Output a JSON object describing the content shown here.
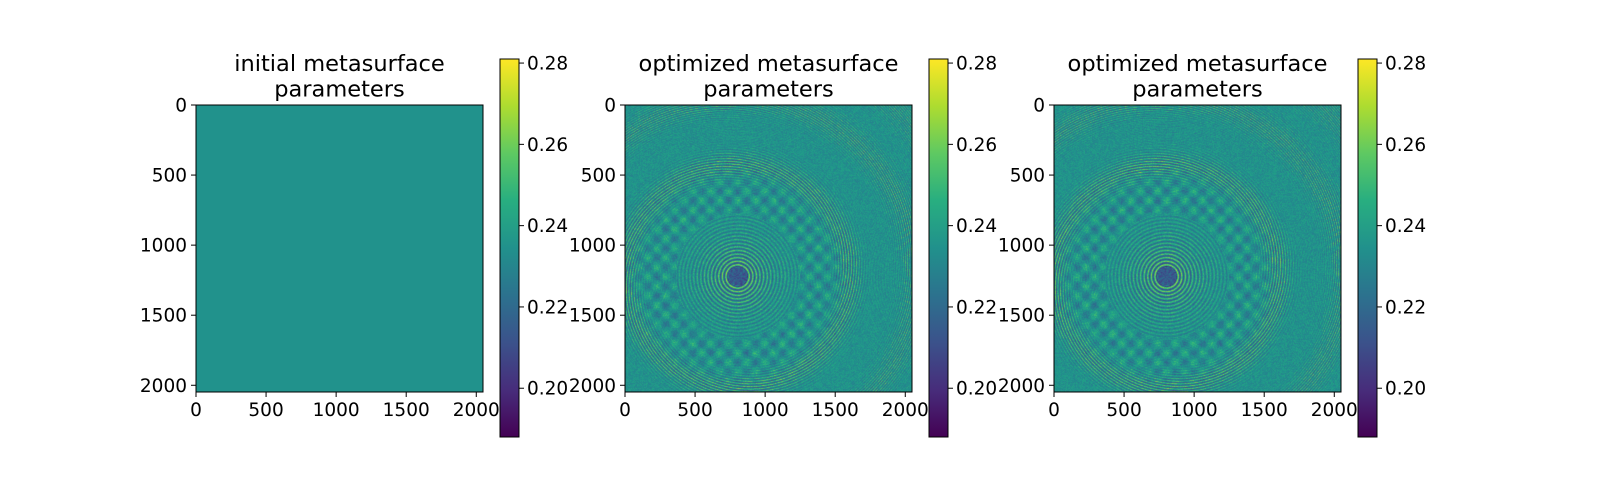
{
  "colors": {
    "viridis_low": "#440154",
    "viridis_mid": "#21918c",
    "viridis_high": "#fde725",
    "uniform_field": "#238f8c",
    "background": "#ffffff"
  },
  "chart_data": [
    {
      "type": "heatmap",
      "title_lines": [
        "initial metasurface",
        "parameters"
      ],
      "xlim": [
        0,
        2048
      ],
      "ylim": [
        2048,
        0
      ],
      "xticks": [
        0,
        500,
        1000,
        1500,
        2000
      ],
      "yticks": [
        0,
        500,
        1000,
        1500,
        2000
      ],
      "colormap": "viridis",
      "value_range": [
        0.188,
        0.281
      ],
      "colorbar_ticks": [
        0.2,
        0.22,
        0.24,
        0.26,
        0.28
      ],
      "colorbar_tick_labels": [
        "0.20",
        "0.22",
        "0.24",
        "0.26",
        "0.28"
      ],
      "pattern": "uniform",
      "uniform_value": 0.235
    },
    {
      "type": "heatmap",
      "title_lines": [
        "optimized metasurface",
        "parameters"
      ],
      "xlim": [
        0,
        2048
      ],
      "ylim": [
        2048,
        0
      ],
      "xticks": [
        0,
        500,
        1000,
        1500,
        2000
      ],
      "yticks": [
        0,
        500,
        1000,
        1500,
        2000
      ],
      "colormap": "viridis",
      "value_range": [
        0.188,
        0.281
      ],
      "colorbar_ticks": [
        0.2,
        0.22,
        0.24,
        0.26,
        0.28
      ],
      "colorbar_tick_labels": [
        "0.20",
        "0.22",
        "0.24",
        "0.26",
        "0.28"
      ],
      "pattern": "concentric-rings",
      "center": [
        800,
        1220
      ]
    },
    {
      "type": "heatmap",
      "title_lines": [
        "optimized metasurface",
        "parameters"
      ],
      "xlim": [
        0,
        2048
      ],
      "ylim": [
        2048,
        0
      ],
      "xticks": [
        0,
        500,
        1000,
        1500,
        2000
      ],
      "yticks": [
        0,
        500,
        1000,
        1500,
        2000
      ],
      "colormap": "viridis",
      "value_range": [
        0.188,
        0.281
      ],
      "colorbar_ticks": [
        0.2,
        0.22,
        0.24,
        0.26,
        0.28
      ],
      "colorbar_tick_labels": [
        "0.20",
        "0.22",
        "0.24",
        "0.26",
        "0.28"
      ],
      "pattern": "concentric-rings",
      "center": [
        800,
        1220
      ]
    }
  ]
}
